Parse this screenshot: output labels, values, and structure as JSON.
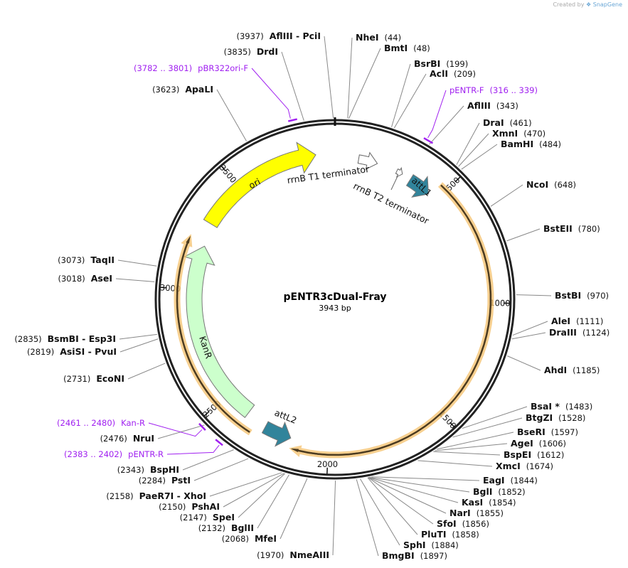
{
  "credit": {
    "prefix": "Created by",
    "brand": "SnapGene"
  },
  "plasmid": {
    "name": "pENTR3cDual-Fray",
    "length_label": "3943 bp",
    "length": 3943
  },
  "ticks": [
    "500",
    "1000",
    "1500",
    "2000",
    "2500",
    "3000",
    "3500"
  ],
  "enzymes": [
    {
      "name": "NheI",
      "pos": 44
    },
    {
      "name": "BmtI",
      "pos": 48
    },
    {
      "name": "BsrBI",
      "pos": 199
    },
    {
      "name": "AclI",
      "pos": 209
    },
    {
      "name": "AflIII",
      "pos": 343
    },
    {
      "name": "DraI",
      "pos": 461
    },
    {
      "name": "XmnI",
      "pos": 470
    },
    {
      "name": "BamHI",
      "pos": 484
    },
    {
      "name": "NcoI",
      "pos": 648
    },
    {
      "name": "BstEII",
      "pos": 780
    },
    {
      "name": "BstBI",
      "pos": 970
    },
    {
      "name": "AleI",
      "pos": 1111
    },
    {
      "name": "DraIII",
      "pos": 1124
    },
    {
      "name": "AhdI",
      "pos": 1185
    },
    {
      "name": "BsaI *",
      "pos": 1483
    },
    {
      "name": "BtgZI",
      "pos": 1528
    },
    {
      "name": "BseRI",
      "pos": 1597
    },
    {
      "name": "AgeI",
      "pos": 1606
    },
    {
      "name": "BspEI",
      "pos": 1612
    },
    {
      "name": "XmcI",
      "pos": 1674
    },
    {
      "name": "EagI",
      "pos": 1844
    },
    {
      "name": "BglI",
      "pos": 1852
    },
    {
      "name": "KasI",
      "pos": 1854
    },
    {
      "name": "NarI",
      "pos": 1855
    },
    {
      "name": "SfoI",
      "pos": 1856
    },
    {
      "name": "PluTI",
      "pos": 1858
    },
    {
      "name": "SphI",
      "pos": 1884
    },
    {
      "name": "BmgBI",
      "pos": 1897
    },
    {
      "name": "NmeAIII",
      "pos": 1970
    },
    {
      "name": "MfeI",
      "pos": 2068
    },
    {
      "name": "BglII",
      "pos": 2132
    },
    {
      "name": "SpeI",
      "pos": 2147
    },
    {
      "name": "PshAI",
      "pos": 2150
    },
    {
      "name": "PaeR7I  - XhoI",
      "pos": 2158
    },
    {
      "name": "PstI",
      "pos": 2284
    },
    {
      "name": "BspHI",
      "pos": 2343
    },
    {
      "name": "NruI",
      "pos": 2476
    },
    {
      "name": "EcoNI",
      "pos": 2731
    },
    {
      "name": "AsiSI  - PvuI",
      "pos": 2819
    },
    {
      "name": "BsmBI  - Esp3I",
      "pos": 2835
    },
    {
      "name": "AseI",
      "pos": 3018
    },
    {
      "name": "TaqII",
      "pos": 3073
    },
    {
      "name": "ApaLI",
      "pos": 3623
    },
    {
      "name": "DrdI",
      "pos": 3835
    },
    {
      "name": "AflIII  - PciI",
      "pos": 3937
    }
  ],
  "primers": [
    {
      "name": "pENTR-F",
      "range": "(316 .. 339)",
      "start": 316,
      "end": 339
    },
    {
      "name": "Kan-R",
      "range": "(2461 .. 2480)",
      "start": 2461,
      "end": 2480
    },
    {
      "name": "pENTR-R",
      "range": "(2383 .. 2402)",
      "start": 2383,
      "end": 2402
    },
    {
      "name": "pBR322ori-F",
      "range": "(3782 .. 3801)",
      "start": 3782,
      "end": 3801
    }
  ],
  "features": [
    {
      "name": "ori",
      "start": 3300,
      "end": 3860,
      "dir": 1,
      "color": "#ffff00"
    },
    {
      "name": "rrnB T1 terminator",
      "start": 105,
      "end": 190,
      "dir": 1,
      "color": "#ffffff"
    },
    {
      "name": "rrnB T2 terminator",
      "start": 282,
      "end": 310,
      "dir": 1,
      "color": "#ffffff"
    },
    {
      "name": "attL1",
      "start": 352,
      "end": 456,
      "dir": 1,
      "color": "#31849b"
    },
    {
      "name": "attL2",
      "start": 2165,
      "end": 2285,
      "dir": -1,
      "color": "#31849b"
    },
    {
      "name": "KanR",
      "start": 2380,
      "end": 3200,
      "dir": 1,
      "color": "#ccffcc"
    },
    {
      "name": "",
      "start": 470,
      "end": 2150,
      "dir": 1,
      "color": "#f5c16b"
    },
    {
      "name": "",
      "start": 2330,
      "end": 3215,
      "dir": 1,
      "color": "#f5c16b"
    }
  ],
  "colors": {
    "primer": "#a020f0",
    "backbone": "#222222"
  }
}
